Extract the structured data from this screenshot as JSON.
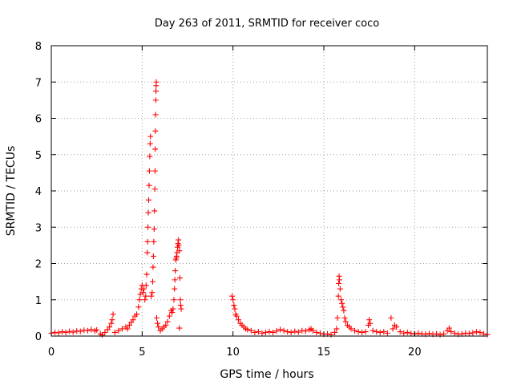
{
  "chart_data": {
    "type": "scatter",
    "title": "Day 263 of 2011, SRMTID for receiver coco",
    "xlabel": "GPS time / hours",
    "ylabel": "SRMTID / TECUs",
    "xlim": [
      0,
      24
    ],
    "ylim": [
      0,
      8
    ],
    "xticks": [
      0,
      5,
      10,
      15,
      20
    ],
    "yticks": [
      0,
      1,
      2,
      3,
      4,
      5,
      6,
      7,
      8
    ],
    "grid": true,
    "marker": "+",
    "colors": {
      "series": "#ff0000",
      "grid": "#a0a0a0",
      "axes": "#000000"
    },
    "series": [
      {
        "name": "",
        "points": [
          [
            0.0,
            0.08
          ],
          [
            0.2,
            0.1
          ],
          [
            0.4,
            0.09
          ],
          [
            0.6,
            0.12
          ],
          [
            0.8,
            0.1
          ],
          [
            1.0,
            0.13
          ],
          [
            1.2,
            0.11
          ],
          [
            1.4,
            0.14
          ],
          [
            1.6,
            0.13
          ],
          [
            1.8,
            0.16
          ],
          [
            2.0,
            0.15
          ],
          [
            2.2,
            0.18
          ],
          [
            2.4,
            0.14
          ],
          [
            2.5,
            0.17
          ],
          [
            2.7,
            0.06
          ],
          [
            2.8,
            0.03
          ],
          [
            2.95,
            0.1
          ],
          [
            3.1,
            0.18
          ],
          [
            3.2,
            0.25
          ],
          [
            3.3,
            0.35
          ],
          [
            3.35,
            0.45
          ],
          [
            3.4,
            0.6
          ],
          [
            3.5,
            0.1
          ],
          [
            3.7,
            0.15
          ],
          [
            3.9,
            0.2
          ],
          [
            4.1,
            0.25
          ],
          [
            4.2,
            0.2
          ],
          [
            4.3,
            0.3
          ],
          [
            4.4,
            0.38
          ],
          [
            4.5,
            0.45
          ],
          [
            4.6,
            0.55
          ],
          [
            4.7,
            0.6
          ],
          [
            4.8,
            0.8
          ],
          [
            4.85,
            1.0
          ],
          [
            4.9,
            1.15
          ],
          [
            4.95,
            1.3
          ],
          [
            5.0,
            1.4
          ],
          [
            5.05,
            1.2
          ],
          [
            5.1,
            1.3
          ],
          [
            5.15,
            1.0
          ],
          [
            5.2,
            1.1
          ],
          [
            5.22,
            1.4
          ],
          [
            5.25,
            1.7
          ],
          [
            5.28,
            2.3
          ],
          [
            5.3,
            2.6
          ],
          [
            5.32,
            3.0
          ],
          [
            5.34,
            3.4
          ],
          [
            5.36,
            3.75
          ],
          [
            5.38,
            4.15
          ],
          [
            5.4,
            4.55
          ],
          [
            5.42,
            4.95
          ],
          [
            5.44,
            5.3
          ],
          [
            5.46,
            5.5
          ],
          [
            5.5,
            1.1
          ],
          [
            5.55,
            1.2
          ],
          [
            5.58,
            1.5
          ],
          [
            5.6,
            1.9
          ],
          [
            5.62,
            2.2
          ],
          [
            5.64,
            2.6
          ],
          [
            5.66,
            2.95
          ],
          [
            5.68,
            3.45
          ],
          [
            5.7,
            4.05
          ],
          [
            5.71,
            4.55
          ],
          [
            5.72,
            5.15
          ],
          [
            5.73,
            5.65
          ],
          [
            5.74,
            6.1
          ],
          [
            5.75,
            6.5
          ],
          [
            5.76,
            6.75
          ],
          [
            5.77,
            6.9
          ],
          [
            5.78,
            7.0
          ],
          [
            5.8,
            0.5
          ],
          [
            5.85,
            0.35
          ],
          [
            5.9,
            0.25
          ],
          [
            6.0,
            0.15
          ],
          [
            6.1,
            0.2
          ],
          [
            6.2,
            0.25
          ],
          [
            6.3,
            0.3
          ],
          [
            6.4,
            0.4
          ],
          [
            6.5,
            0.55
          ],
          [
            6.6,
            0.7
          ],
          [
            6.65,
            0.65
          ],
          [
            6.7,
            0.75
          ],
          [
            6.75,
            1.0
          ],
          [
            6.78,
            1.3
          ],
          [
            6.8,
            1.55
          ],
          [
            6.82,
            1.8
          ],
          [
            6.85,
            2.1
          ],
          [
            6.88,
            2.15
          ],
          [
            6.9,
            2.2
          ],
          [
            6.92,
            2.3
          ],
          [
            6.95,
            2.45
          ],
          [
            6.97,
            2.55
          ],
          [
            7.0,
            2.65
          ],
          [
            7.02,
            2.5
          ],
          [
            7.05,
            2.35
          ],
          [
            7.08,
            1.6
          ],
          [
            7.1,
            1.0
          ],
          [
            7.12,
            0.85
          ],
          [
            7.15,
            0.75
          ],
          [
            7.05,
            0.22
          ],
          [
            9.95,
            1.1
          ],
          [
            10.0,
            1.0
          ],
          [
            10.05,
            0.85
          ],
          [
            10.1,
            0.75
          ],
          [
            10.15,
            0.6
          ],
          [
            10.2,
            0.55
          ],
          [
            10.3,
            0.45
          ],
          [
            10.4,
            0.35
          ],
          [
            10.5,
            0.3
          ],
          [
            10.6,
            0.25
          ],
          [
            10.7,
            0.2
          ],
          [
            10.8,
            0.18
          ],
          [
            11.0,
            0.15
          ],
          [
            11.2,
            0.1
          ],
          [
            11.4,
            0.12
          ],
          [
            11.6,
            0.08
          ],
          [
            11.8,
            0.1
          ],
          [
            12.0,
            0.12
          ],
          [
            12.2,
            0.1
          ],
          [
            12.4,
            0.14
          ],
          [
            12.6,
            0.18
          ],
          [
            12.8,
            0.15
          ],
          [
            13.0,
            0.12
          ],
          [
            13.2,
            0.1
          ],
          [
            13.4,
            0.13
          ],
          [
            13.6,
            0.11
          ],
          [
            13.8,
            0.15
          ],
          [
            14.0,
            0.14
          ],
          [
            14.2,
            0.18
          ],
          [
            14.3,
            0.2
          ],
          [
            14.4,
            0.15
          ],
          [
            14.6,
            0.1
          ],
          [
            14.8,
            0.08
          ],
          [
            15.0,
            0.05
          ],
          [
            15.2,
            0.06
          ],
          [
            15.4,
            0.04
          ],
          [
            15.6,
            0.1
          ],
          [
            15.7,
            0.2
          ],
          [
            15.75,
            0.5
          ],
          [
            15.8,
            1.1
          ],
          [
            15.82,
            1.45
          ],
          [
            15.84,
            1.65
          ],
          [
            15.86,
            1.55
          ],
          [
            15.9,
            1.3
          ],
          [
            15.95,
            1.0
          ],
          [
            16.0,
            0.9
          ],
          [
            16.05,
            0.8
          ],
          [
            16.1,
            0.7
          ],
          [
            16.15,
            0.5
          ],
          [
            16.2,
            0.4
          ],
          [
            16.3,
            0.3
          ],
          [
            16.4,
            0.25
          ],
          [
            16.5,
            0.2
          ],
          [
            16.7,
            0.15
          ],
          [
            16.9,
            0.12
          ],
          [
            17.1,
            0.1
          ],
          [
            17.3,
            0.12
          ],
          [
            17.45,
            0.3
          ],
          [
            17.5,
            0.45
          ],
          [
            17.55,
            0.35
          ],
          [
            17.7,
            0.15
          ],
          [
            17.9,
            0.12
          ],
          [
            18.1,
            0.1
          ],
          [
            18.3,
            0.12
          ],
          [
            18.5,
            0.08
          ],
          [
            18.7,
            0.5
          ],
          [
            18.8,
            0.2
          ],
          [
            18.9,
            0.3
          ],
          [
            19.0,
            0.25
          ],
          [
            19.2,
            0.12
          ],
          [
            19.4,
            0.08
          ],
          [
            19.6,
            0.1
          ],
          [
            19.8,
            0.07
          ],
          [
            20.0,
            0.06
          ],
          [
            20.2,
            0.08
          ],
          [
            20.4,
            0.06
          ],
          [
            20.6,
            0.05
          ],
          [
            20.8,
            0.07
          ],
          [
            21.0,
            0.05
          ],
          [
            21.2,
            0.06
          ],
          [
            21.4,
            0.04
          ],
          [
            21.6,
            0.06
          ],
          [
            21.8,
            0.15
          ],
          [
            21.9,
            0.22
          ],
          [
            22.0,
            0.12
          ],
          [
            22.2,
            0.08
          ],
          [
            22.4,
            0.05
          ],
          [
            22.6,
            0.06
          ],
          [
            22.8,
            0.08
          ],
          [
            23.0,
            0.07
          ],
          [
            23.2,
            0.09
          ],
          [
            23.4,
            0.12
          ],
          [
            23.6,
            0.1
          ],
          [
            23.8,
            0.06
          ],
          [
            24.0,
            0.04
          ]
        ]
      }
    ]
  }
}
